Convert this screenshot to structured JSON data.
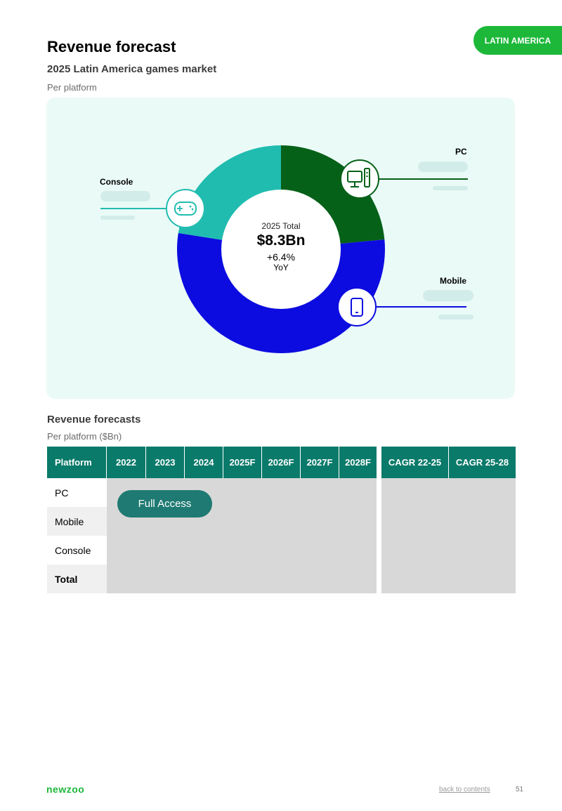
{
  "header": {
    "region_tag": "LATIN AMERICA",
    "title": "Revenue forecast",
    "subtitle": "2025 Latin America games market",
    "caption": "Per platform"
  },
  "chart_data": {
    "type": "pie",
    "style": "donut",
    "center_label": "2025 Total",
    "center_total": "$8.3Bn",
    "center_yoy": "+6.4%",
    "center_yoy_suffix": "YoY",
    "categories": [
      "PC",
      "Mobile",
      "Console"
    ],
    "colors": {
      "PC": "#056117",
      "Mobile": "#0c0ce0",
      "Console": "#20bcb0"
    },
    "icons": {
      "PC": "desktop-pc-icon",
      "Mobile": "smartphone-icon",
      "Console": "gamepad-icon"
    },
    "values": null,
    "note": "segment values are hidden (redacted placeholders); only labels are shown"
  },
  "table": {
    "title": "Revenue forecasts",
    "caption": "Per platform ($Bn)",
    "columns": [
      "Platform",
      "2022",
      "2023",
      "2024",
      "2025F",
      "2026F",
      "2027F",
      "2028F"
    ],
    "cagr_columns": [
      "CAGR 22-25",
      "CAGR 25-28"
    ],
    "rows": [
      "PC",
      "Mobile",
      "Console",
      "Total"
    ],
    "access_button": "Full Access",
    "header_color": "#0a7a6a"
  },
  "footer": {
    "brand": "newzoo",
    "back_link": "back to contents",
    "page_number": "51"
  }
}
